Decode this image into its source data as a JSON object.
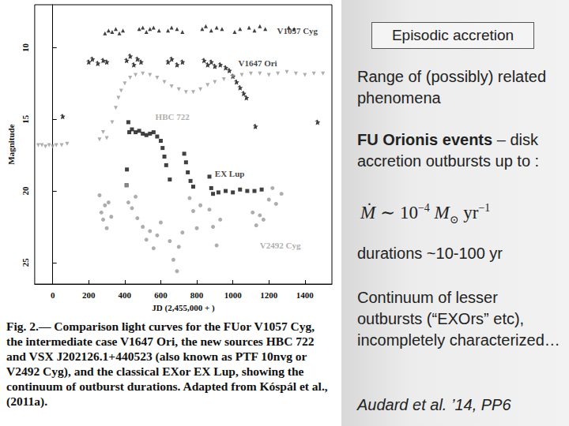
{
  "chart_data": {
    "type": "scatter",
    "x_label": "JD (2,455,000 + )",
    "y_label": "Magnitude",
    "xlim": [
      -100,
      1550
    ],
    "xticks": [
      0,
      200,
      400,
      600,
      800,
      1000,
      1200,
      1400
    ],
    "ylim": [
      26.5,
      7
    ],
    "yticks": [
      10,
      15,
      20,
      25
    ],
    "grid": false,
    "series": [
      {
        "name": "V1057 Cyg",
        "color": "#111111",
        "marker": "triangle",
        "label_xy": [
          1245,
          8.8
        ],
        "x": [
          290,
          310,
          330,
          350,
          370,
          390,
          480,
          500,
          520,
          540,
          560,
          590,
          640,
          660,
          690,
          720,
          830,
          850,
          880,
          910,
          940,
          1010,
          1040,
          1090,
          1120,
          1150,
          1180,
          1310,
          1340
        ],
        "values": [
          9.0,
          8.8,
          8.9,
          8.7,
          9.0,
          8.8,
          8.7,
          8.6,
          8.9,
          8.7,
          8.6,
          8.8,
          8.8,
          8.6,
          8.7,
          8.9,
          8.7,
          8.5,
          8.8,
          8.6,
          8.7,
          8.9,
          8.7,
          8.6,
          8.8,
          8.5,
          8.7,
          8.6,
          8.7
        ]
      },
      {
        "name": "V1647 Ori",
        "color": "#111111",
        "marker": "star",
        "label_xy": [
          1030,
          11.1
        ],
        "x": [
          55,
          200,
          220,
          250,
          280,
          300,
          410,
          430,
          450,
          470,
          490,
          640,
          660,
          690,
          720,
          840,
          860,
          880,
          900,
          930,
          960,
          980,
          1000,
          1020,
          1040,
          1060,
          1075,
          1125,
          1470
        ],
        "values": [
          14.8,
          11.0,
          10.8,
          11.1,
          10.9,
          11.0,
          10.9,
          10.6,
          11.2,
          10.8,
          11.0,
          11.0,
          10.8,
          11.2,
          11.0,
          10.9,
          11.2,
          11.0,
          11.3,
          11.2,
          11.4,
          11.6,
          12.0,
          12.4,
          12.8,
          13.2,
          13.5,
          15.5,
          15.2
        ]
      },
      {
        "name": "HBC 722",
        "color": "#999999",
        "marker": "triangle-down",
        "label_xy": [
          570,
          14.8
        ],
        "x": [
          -80,
          -60,
          -40,
          -20,
          0,
          20,
          50,
          80,
          260,
          280,
          300,
          330,
          350,
          365,
          380,
          400,
          430,
          460,
          500,
          540,
          580,
          620,
          660,
          700,
          740,
          780,
          820,
          860,
          900,
          950,
          1000,
          1050,
          1100,
          1150,
          1200,
          1250,
          1300,
          1350,
          1400,
          1450,
          1500
        ],
        "values": [
          16.8,
          16.8,
          16.9,
          16.8,
          16.9,
          16.8,
          16.8,
          16.7,
          16.4,
          15.9,
          16.3,
          15.2,
          14.2,
          13.5,
          13.0,
          12.5,
          12.1,
          11.9,
          11.8,
          11.9,
          12.1,
          12.4,
          12.7,
          12.9,
          13.1,
          13.1,
          12.9,
          12.6,
          12.4,
          12.2,
          12.0,
          11.9,
          11.8,
          11.8,
          11.9,
          11.8,
          11.7,
          11.8,
          11.9,
          11.8,
          11.8
        ]
      },
      {
        "name": "EX Lup",
        "color": "#111111",
        "marker": "square",
        "label_xy": [
          900,
          18.8
        ],
        "x": [
          410,
          412,
          420,
          425,
          440,
          460,
          480,
          500,
          520,
          540,
          560,
          580,
          600,
          610,
          620,
          630,
          650,
          730,
          740,
          750,
          765,
          780,
          870,
          880,
          890,
          920,
          960,
          1000,
          1040,
          1080,
          1120,
          1160
        ],
        "values": [
          19.6,
          18.5,
          15.2,
          15.9,
          15.7,
          15.9,
          15.8,
          16.0,
          16.1,
          16.0,
          15.9,
          16.2,
          16.5,
          17.0,
          17.6,
          18.2,
          19.2,
          17.4,
          18.0,
          18.7,
          19.3,
          19.7,
          19.0,
          19.8,
          20.2,
          20.1,
          20.0,
          20.1,
          19.9,
          20.0,
          20.0,
          19.9
        ]
      },
      {
        "name": "V2492 Cyg",
        "color": "#999999",
        "marker": "circle",
        "label_xy": [
          1150,
          23.8
        ],
        "x": [
          260,
          270,
          280,
          290,
          300,
          310,
          325,
          410,
          420,
          440,
          460,
          470,
          500,
          520,
          540,
          560,
          580,
          600,
          650,
          670,
          690,
          700,
          720,
          760,
          780,
          800,
          820,
          870,
          890,
          910,
          930,
          1110,
          1130,
          1150,
          1170,
          1200,
          1220,
          1240,
          1270
        ],
        "values": [
          20.3,
          21.5,
          22.0,
          21.0,
          22.6,
          20.8,
          21.8,
          19.6,
          20.8,
          21.2,
          20.4,
          21.9,
          22.5,
          23.4,
          22.8,
          24.0,
          23.1,
          22.2,
          23.5,
          24.8,
          25.6,
          23.9,
          22.9,
          20.5,
          21.4,
          22.6,
          21.0,
          21.3,
          22.5,
          23.8,
          22.0,
          21.5,
          22.4,
          21.7,
          22.0,
          20.6,
          19.8,
          20.9,
          20.2
        ]
      }
    ]
  },
  "figure_caption": {
    "label": "Fig. 2.—",
    "text": "Comparison light curves for the FUor V1057 Cyg, the intermediate case V1647 Ori, the new sources HBC 722 and VSX J202126.1+440523 (also known as PTF 10nvg or V2492 Cyg), and the classical EXor EX Lup, showing the continuum of outburst durations. Adapted from Kóspál et al., (2011a)."
  },
  "slide": {
    "title": "Episodic accretion",
    "intro": "Range of (possibly) related phenomena",
    "fu_ori_bold": "FU Orionis events",
    "fu_ori_text": " – disk accretion outbursts up to :",
    "equation": {
      "lhs": "Ṁ",
      "relation": "∼",
      "base": "10",
      "exponent": "−4",
      "unit": "M",
      "unit_sub": "⊙",
      "unit2": "yr",
      "unit2_exponent": "−1"
    },
    "durations": "durations ~10-100 yr",
    "continuum": "Continuum of lesser outbursts (“EXOrs” etc), incompletely characterized…",
    "reference": "Audard et al. ’14, PP6"
  }
}
